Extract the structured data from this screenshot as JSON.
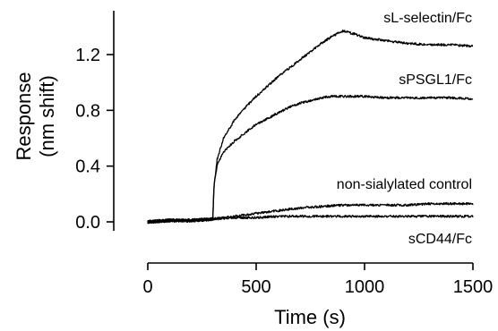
{
  "chart_data": {
    "type": "line",
    "xlabel": "Time (s)",
    "ylabel_lines": [
      "Response",
      "(nm shift)"
    ],
    "xlim": [
      0,
      1500
    ],
    "ylim": [
      -0.05,
      1.5
    ],
    "x_ticks": [
      0,
      500,
      1000,
      1500
    ],
    "x_tick_labels": [
      "0",
      "500",
      "1000",
      "1500"
    ],
    "y_ticks": [
      0.0,
      0.4,
      0.8,
      1.2
    ],
    "y_tick_labels": [
      "0.0",
      "0.4",
      "0.8",
      "1.2"
    ],
    "grid": false,
    "legend": "labels next to curves",
    "series": [
      {
        "name": "sL-selectin/Fc",
        "x": [
          0,
          100,
          200,
          300,
          305,
          320,
          350,
          400,
          450,
          500,
          550,
          600,
          650,
          700,
          750,
          800,
          850,
          900,
          950,
          1000,
          1100,
          1200,
          1300,
          1400,
          1500
        ],
        "y": [
          0.0,
          0.01,
          0.01,
          0.02,
          0.25,
          0.45,
          0.6,
          0.73,
          0.82,
          0.9,
          0.97,
          1.04,
          1.1,
          1.16,
          1.22,
          1.28,
          1.33,
          1.37,
          1.35,
          1.32,
          1.3,
          1.28,
          1.27,
          1.27,
          1.26
        ]
      },
      {
        "name": "sPSGL1/Fc",
        "x": [
          0,
          100,
          200,
          300,
          305,
          320,
          350,
          400,
          450,
          500,
          550,
          600,
          650,
          700,
          750,
          800,
          850,
          900,
          1000,
          1100,
          1200,
          1300,
          1400,
          1500
        ],
        "y": [
          0.0,
          0.01,
          0.01,
          0.02,
          0.25,
          0.41,
          0.5,
          0.58,
          0.64,
          0.7,
          0.74,
          0.78,
          0.82,
          0.85,
          0.87,
          0.89,
          0.9,
          0.9,
          0.9,
          0.89,
          0.89,
          0.89,
          0.89,
          0.88
        ]
      },
      {
        "name": "non-sialylated control",
        "x": [
          0,
          100,
          200,
          300,
          400,
          500,
          600,
          700,
          800,
          900,
          1000,
          1100,
          1200,
          1300,
          1400,
          1500
        ],
        "y": [
          0.0,
          0.01,
          0.01,
          0.02,
          0.04,
          0.06,
          0.08,
          0.1,
          0.11,
          0.12,
          0.12,
          0.12,
          0.12,
          0.13,
          0.13,
          0.13
        ]
      },
      {
        "name": "sCD44/Fc",
        "x": [
          0,
          100,
          200,
          300,
          400,
          500,
          600,
          700,
          800,
          900,
          1000,
          1100,
          1200,
          1300,
          1400,
          1500
        ],
        "y": [
          0.0,
          0.01,
          0.01,
          0.02,
          0.03,
          0.03,
          0.04,
          0.04,
          0.04,
          0.04,
          0.04,
          0.04,
          0.04,
          0.04,
          0.04,
          0.04
        ]
      }
    ]
  }
}
